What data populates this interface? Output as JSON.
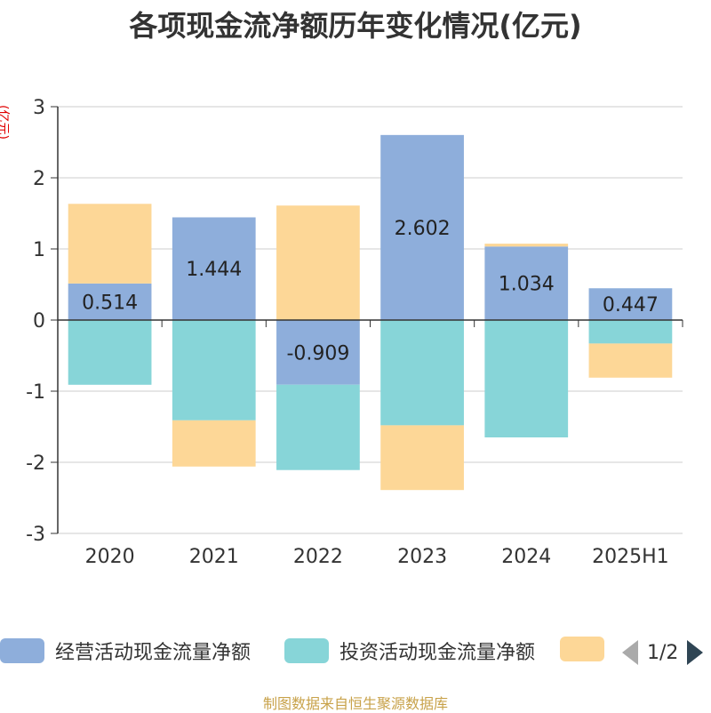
{
  "title": "各项现金流净额历年变化情况(亿元)",
  "unit_label": "(亿元)",
  "source": "制图数据来自恒生聚源数据库",
  "legend": {
    "items": [
      {
        "label": "经营活动现金流量净额",
        "color": "#8eaedb"
      },
      {
        "label": "投资活动现金流量净额",
        "color": "#87d5d8"
      },
      {
        "label": "",
        "color": "#fdd797"
      }
    ],
    "pager": "1/2"
  },
  "chart_data": {
    "type": "bar",
    "stacked": true,
    "categories": [
      "2020",
      "2021",
      "2022",
      "2023",
      "2024",
      "2025H1"
    ],
    "series": [
      {
        "name": "经营活动现金流量净额",
        "color": "#8eaedb",
        "values": [
          0.514,
          1.444,
          -0.909,
          2.602,
          1.034,
          0.447
        ],
        "labels": [
          "0.514",
          "1.444",
          "-0.909",
          "2.602",
          "1.034",
          "0.447"
        ]
      },
      {
        "name": "投资活动现金流量净额",
        "color": "#87d5d8",
        "values": [
          -0.91,
          -1.41,
          -1.2,
          -1.48,
          -1.65,
          -0.33
        ]
      },
      {
        "name": "",
        "color": "#fdd797",
        "values": [
          1.12,
          -0.65,
          1.61,
          -0.91,
          0.04,
          -0.48
        ]
      }
    ],
    "ylim": [
      -3,
      3
    ],
    "yticks": [
      "3",
      "2",
      "1",
      "0",
      "-1",
      "-2",
      "-3"
    ],
    "grid": true
  }
}
